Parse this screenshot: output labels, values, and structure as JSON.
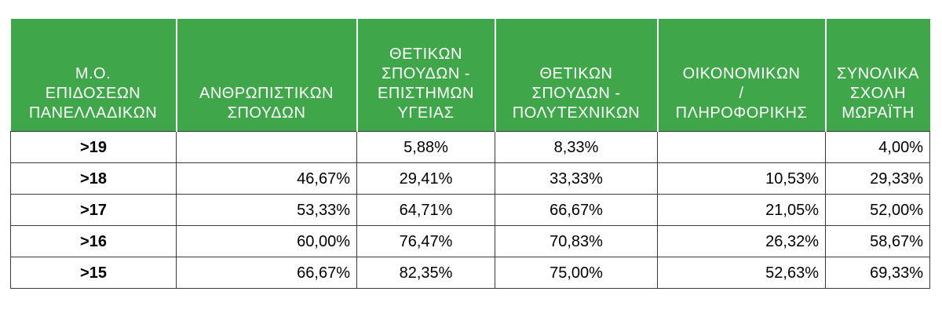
{
  "table": {
    "headers": [
      "Μ.Ο.\nΕΠΙΔΟΣΕΩΝ\nΠΑΝΕΛΛΑΔΙΚΩΝ",
      "ΑΝΘΡΩΠΙΣΤΙΚΩΝ\nΣΠΟΥΔΩΝ",
      "ΘΕΤΙΚΩΝ\nΣΠΟΥΔΩΝ  -\nΕΠΙΣΤΗΜΩΝ\nΥΓΕΙΑΣ",
      "ΘΕΤΙΚΩΝ\nΣΠΟΥΔΩΝ  -\nΠΟΛΥΤΕΧΝΙΚΩΝ",
      "ΟΙΚΟΝΟΜΙΚΩΝ\n/\nΠΛΗΡΟΦΟΡΙΚΗΣ",
      "ΣΥΝΟΛΙΚΑ\nΣΧΟΛΗ\nΜΩΡΑΪΤΗ"
    ],
    "rows": [
      {
        "label": ">19",
        "values": [
          "",
          "5,88%",
          "8,33%",
          "",
          "4,00%"
        ]
      },
      {
        "label": ">18",
        "values": [
          "46,67%",
          "29,41%",
          "33,33%",
          "10,53%",
          "29,33%"
        ]
      },
      {
        "label": ">17",
        "values": [
          "53,33%",
          "64,71%",
          "66,67%",
          "21,05%",
          "52,00%"
        ]
      },
      {
        "label": ">16",
        "values": [
          "60,00%",
          "76,47%",
          "70,83%",
          "26,32%",
          "58,67%"
        ]
      },
      {
        "label": ">15",
        "values": [
          "66,67%",
          "82,35%",
          "75,00%",
          "52,63%",
          "69,33%"
        ]
      }
    ]
  },
  "colors": {
    "header_bg": "#3fa64a",
    "header_text": "#ffffff",
    "border": "#3a3a3a"
  }
}
